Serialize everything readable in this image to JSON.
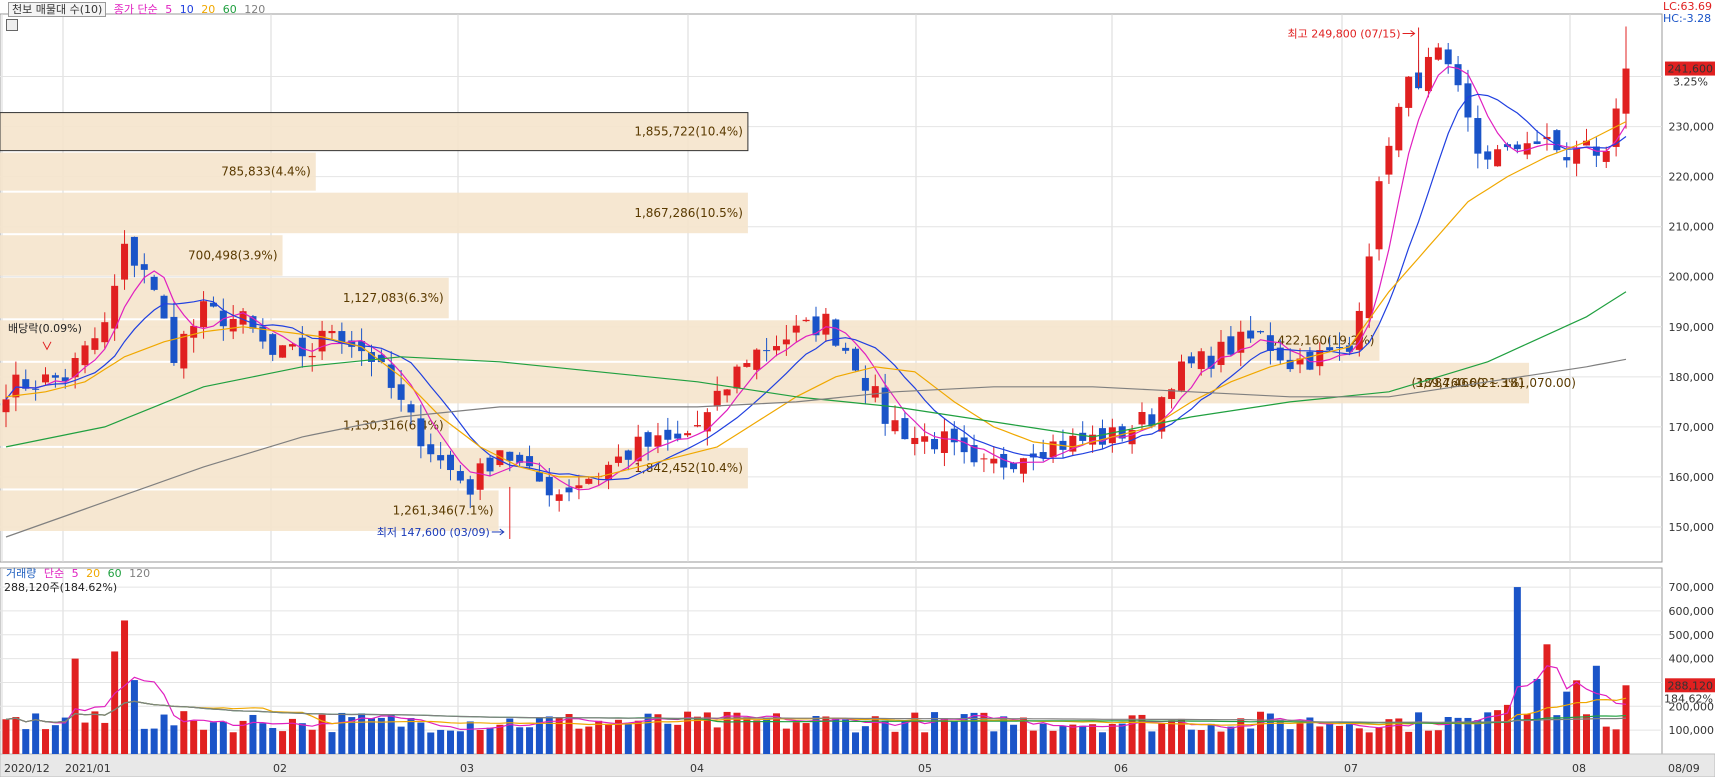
{
  "legend": {
    "box_label": "천보 매물대 수(10)",
    "ma_label": "종가 단순",
    "ma_periods": [
      "5",
      "10",
      "20",
      "60",
      "120"
    ],
    "ma_colors": [
      "#e020c0",
      "#2040e0",
      "#f0a800",
      "#20a040",
      "#808080"
    ]
  },
  "volume_legend": {
    "title": "거래량",
    "ma_label": "단순",
    "ma_periods": [
      "5",
      "20",
      "60",
      "120"
    ],
    "ma_colors": [
      "#e020c0",
      "#f0a800",
      "#20a040",
      "#808080"
    ],
    "current_line": "288,120주(184.62%)"
  },
  "right_labels": {
    "lc": "LC:63.69",
    "hc": "HC:-3.28",
    "last_price": "241,600",
    "last_change": "3.25%",
    "last_volume": "288,120",
    "last_volume_pct": "184.62%"
  },
  "annotations": {
    "high": "최고 249,800 (07/15)",
    "low": "최저 147,600 (03/09)",
    "dividend": "배당락(0.09%)"
  },
  "chart_data": [
    {
      "type": "candlestick",
      "title": "",
      "ylim": [
        143000,
        252500
      ],
      "y_ticks": [
        150000,
        160000,
        170000,
        180000,
        190000,
        200000,
        210000,
        220000,
        230000,
        240000
      ],
      "y_tick_labels": [
        "150,000",
        "160,000",
        "170,000",
        "180,000",
        "190,000",
        "200,000",
        "210,000",
        "220,000",
        "230,000",
        ""
      ],
      "x_labels": [
        "2020/12",
        "2021/01",
        "02",
        "03",
        "04",
        "05",
        "06",
        "07",
        "08",
        "08/09"
      ],
      "candle_colors": {
        "up": "#e02020",
        "down": "#1a54c8"
      },
      "volume_profile": [
        {
          "low": 225000,
          "high": 233000,
          "volume": "1,855,722",
          "pct": "10.4%",
          "len": 0.45
        },
        {
          "low": 217000,
          "high": 225000,
          "volume": "785,833",
          "pct": "4.4%",
          "len": 0.19
        },
        {
          "low": 208500,
          "high": 217000,
          "volume": "1,867,286",
          "pct": "10.5%",
          "len": 0.45
        },
        {
          "low": 200000,
          "high": 208500,
          "volume": "700,498",
          "pct": "3.9%",
          "len": 0.17
        },
        {
          "low": 191500,
          "high": 200000,
          "volume": "1,127,083",
          "pct": "6.3%",
          "len": 0.27
        },
        {
          "low": 183000,
          "high": 191500,
          "volume": "3,422,160",
          "pct": "19.2%",
          "len": 0.83
        },
        {
          "low": 174500,
          "high": 183000,
          "volume": "3,784,466",
          "pct": "21.3%",
          "len": 0.92
        },
        {
          "low": 166000,
          "high": 174500,
          "volume": "1,130,316",
          "pct": "6.4%",
          "len": 0.27
        },
        {
          "low": 157500,
          "high": 166000,
          "volume": "1,842,452",
          "pct": "10.4%",
          "len": 0.45
        },
        {
          "low": 149000,
          "high": 157500,
          "volume": "1,261,346",
          "pct": "7.1%",
          "len": 0.3
        }
      ],
      "highlight_zone_label": "(189,760.00 ~ 181,070.00)",
      "series_anchors": {
        "close": [
          [
            0,
            178000
          ],
          [
            6,
            180000
          ],
          [
            10,
            190000
          ],
          [
            12,
            205000
          ],
          [
            14,
            202000
          ],
          [
            17,
            185000
          ],
          [
            20,
            193000
          ],
          [
            24,
            191000
          ],
          [
            27,
            184000
          ],
          [
            31,
            185000
          ],
          [
            33,
            190000
          ],
          [
            37,
            184000
          ],
          [
            41,
            171000
          ],
          [
            44,
            163000
          ],
          [
            47,
            158000
          ],
          [
            50,
            166000
          ],
          [
            53,
            160000
          ],
          [
            56,
            157000
          ],
          [
            60,
            161000
          ],
          [
            64,
            166000
          ],
          [
            68,
            167000
          ],
          [
            71,
            172000
          ],
          [
            75,
            184000
          ],
          [
            79,
            188000
          ],
          [
            83,
            191000
          ],
          [
            86,
            183000
          ],
          [
            89,
            172000
          ],
          [
            92,
            168000
          ],
          [
            95,
            167000
          ],
          [
            98,
            161000
          ],
          [
            101,
            163000
          ],
          [
            104,
            166000
          ],
          [
            108,
            167000
          ],
          [
            112,
            168000
          ],
          [
            116,
            172000
          ],
          [
            118,
            180000
          ],
          [
            121,
            183000
          ],
          [
            124,
            186000
          ],
          [
            127,
            188000
          ],
          [
            130,
            183000
          ],
          [
            133,
            184000
          ],
          [
            136,
            185000
          ],
          [
            138,
            206000
          ],
          [
            140,
            228000
          ],
          [
            142,
            238000
          ],
          [
            145,
            244000
          ],
          [
            147,
            236000
          ],
          [
            149,
            225000
          ],
          [
            152,
            224000
          ],
          [
            154,
            228000
          ],
          [
            156,
            226000
          ],
          [
            158,
            224000
          ],
          [
            160,
            226000
          ],
          [
            162,
            224000
          ],
          [
            163,
            234000
          ],
          [
            164,
            241600
          ]
        ],
        "ma20": [
          [
            0,
            176000
          ],
          [
            4,
            177000
          ],
          [
            8,
            179000
          ],
          [
            12,
            184000
          ],
          [
            16,
            187000
          ],
          [
            20,
            189000
          ],
          [
            24,
            190000
          ],
          [
            28,
            189000
          ],
          [
            32,
            188000
          ],
          [
            36,
            186000
          ],
          [
            40,
            180000
          ],
          [
            44,
            172000
          ],
          [
            48,
            166000
          ],
          [
            52,
            162000
          ],
          [
            56,
            160000
          ],
          [
            60,
            160000
          ],
          [
            64,
            162000
          ],
          [
            68,
            164000
          ],
          [
            72,
            166000
          ],
          [
            76,
            171000
          ],
          [
            80,
            176000
          ],
          [
            84,
            180000
          ],
          [
            88,
            182000
          ],
          [
            92,
            181000
          ],
          [
            96,
            175000
          ],
          [
            100,
            170000
          ],
          [
            104,
            167000
          ],
          [
            108,
            166000
          ],
          [
            112,
            168000
          ],
          [
            116,
            170000
          ],
          [
            120,
            175000
          ],
          [
            124,
            179000
          ],
          [
            128,
            182000
          ],
          [
            132,
            184000
          ],
          [
            136,
            186000
          ],
          [
            140,
            197000
          ],
          [
            144,
            206000
          ],
          [
            148,
            215000
          ],
          [
            152,
            220000
          ],
          [
            156,
            224000
          ],
          [
            160,
            227000
          ],
          [
            164,
            231000
          ]
        ],
        "ma60": [
          [
            0,
            166000
          ],
          [
            10,
            170000
          ],
          [
            20,
            178000
          ],
          [
            30,
            182000
          ],
          [
            40,
            184000
          ],
          [
            50,
            183000
          ],
          [
            60,
            181000
          ],
          [
            70,
            179000
          ],
          [
            80,
            176000
          ],
          [
            90,
            174000
          ],
          [
            100,
            171000
          ],
          [
            110,
            168000
          ],
          [
            120,
            172000
          ],
          [
            130,
            175000
          ],
          [
            140,
            177000
          ],
          [
            150,
            183000
          ],
          [
            160,
            192000
          ],
          [
            164,
            197000
          ]
        ],
        "ma120": [
          [
            0,
            148000
          ],
          [
            10,
            155000
          ],
          [
            20,
            162000
          ],
          [
            30,
            168000
          ],
          [
            40,
            172000
          ],
          [
            50,
            174000
          ],
          [
            60,
            174000
          ],
          [
            70,
            174000
          ],
          [
            80,
            175000
          ],
          [
            90,
            177000
          ],
          [
            100,
            178000
          ],
          [
            110,
            178000
          ],
          [
            120,
            177000
          ],
          [
            130,
            176000
          ],
          [
            140,
            176000
          ],
          [
            150,
            179000
          ],
          [
            160,
            182000
          ],
          [
            164,
            183500
          ]
        ]
      },
      "n_days": 165
    },
    {
      "type": "bar",
      "title": "거래량",
      "ylim": [
        0,
        780000
      ],
      "y_ticks": [
        100000,
        200000,
        300000,
        400000,
        500000,
        600000,
        700000
      ],
      "y_tick_labels": [
        "100,000",
        "200,000",
        "300,000",
        "400,000",
        "500,000",
        "600,000",
        "700,000"
      ],
      "highlights": [
        [
          7,
          400000
        ],
        [
          11,
          430000
        ],
        [
          12,
          560000
        ],
        [
          13,
          310000
        ],
        [
          153,
          700000
        ],
        [
          156,
          460000
        ],
        [
          161,
          370000
        ],
        [
          164,
          288120
        ]
      ]
    }
  ]
}
